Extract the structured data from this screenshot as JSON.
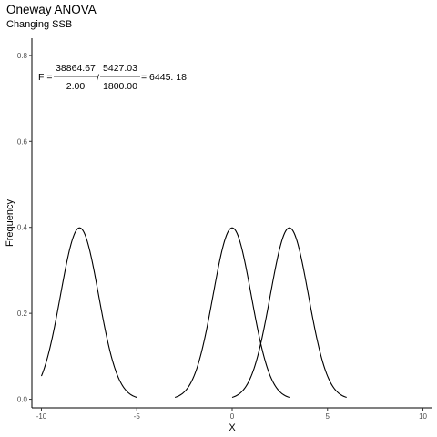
{
  "chart_data": {
    "type": "line",
    "title": "Oneway ANOVA",
    "subtitle": "Changing SSB",
    "xlabel": "X",
    "ylabel": "Frequency",
    "xlim": [
      -10.5,
      10.5
    ],
    "ylim": [
      -0.02,
      0.84
    ],
    "x_ticks": [
      -10,
      -5,
      0,
      5,
      10
    ],
    "y_ticks": [
      0.0,
      0.2,
      0.4,
      0.6,
      0.8
    ],
    "x_tick_labels": [
      "-10",
      "-5",
      "0",
      "5",
      "10"
    ],
    "y_tick_labels": [
      "0.0",
      "0.2",
      "0.4",
      "0.6",
      "0.8"
    ],
    "grid": false,
    "legend": "none",
    "series": [
      {
        "distribution": "normal",
        "mean": -8,
        "sd": 1,
        "x_range": [
          -10,
          -5
        ]
      },
      {
        "distribution": "normal",
        "mean": 0,
        "sd": 1,
        "x_range": [
          -3,
          3
        ]
      },
      {
        "distribution": "normal",
        "mean": 3,
        "sd": 1,
        "x_range": [
          0,
          6
        ]
      }
    ],
    "annotation": {
      "prefix": "F = ",
      "num1": "38864.67",
      "den1": "2.00",
      "num2": "5427.03",
      "den2": "1800.00",
      "result": "= 6445. 18"
    }
  }
}
